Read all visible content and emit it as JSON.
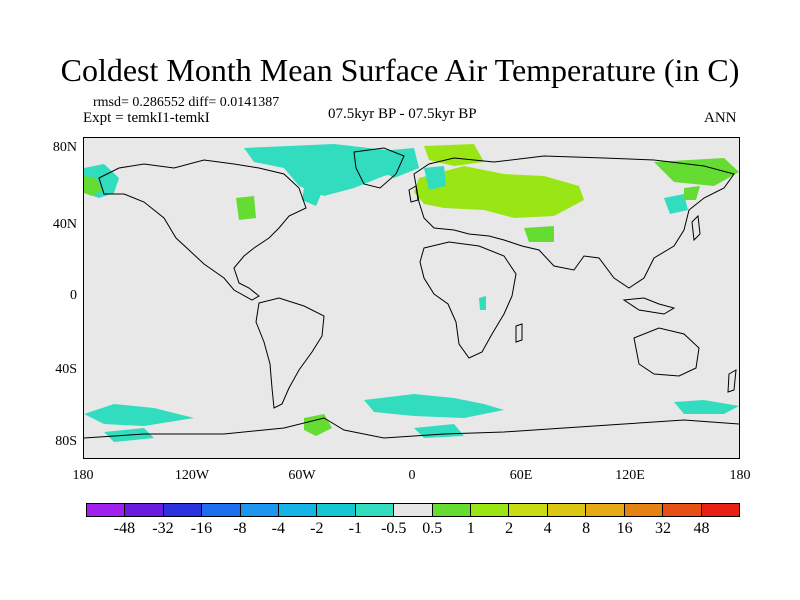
{
  "title": "Coldest Month Mean Surface Air Temperature (in C)",
  "stats": "rmsd= 0.286552 diff= 0.0141387",
  "experiment": "Expt = temkI1-temkI",
  "period": "07.5kyr BP - 07.5kyr BP",
  "season": "ANN",
  "lat_labels": [
    "80N",
    "40N",
    "0",
    "40S",
    "80S"
  ],
  "lon_labels": [
    "180",
    "120W",
    "60W",
    "0",
    "60E",
    "120E",
    "180"
  ],
  "colorbar": {
    "colors": [
      "#a020f0",
      "#6a1be0",
      "#2d32e0",
      "#1e6ef0",
      "#1e96f0",
      "#14b4e6",
      "#14c8d2",
      "#32dcbe",
      "#e6e6e6",
      "#64dc32",
      "#9ae614",
      "#c8dc14",
      "#dcc814",
      "#e6aa14",
      "#e68214",
      "#e65014",
      "#e61e14"
    ],
    "labels": [
      "-48",
      "-32",
      "-16",
      "-8",
      "-4",
      "-2",
      "-1",
      "-0.5",
      "0.5",
      "1",
      "2",
      "4",
      "8",
      "16",
      "32",
      "48"
    ]
  }
}
